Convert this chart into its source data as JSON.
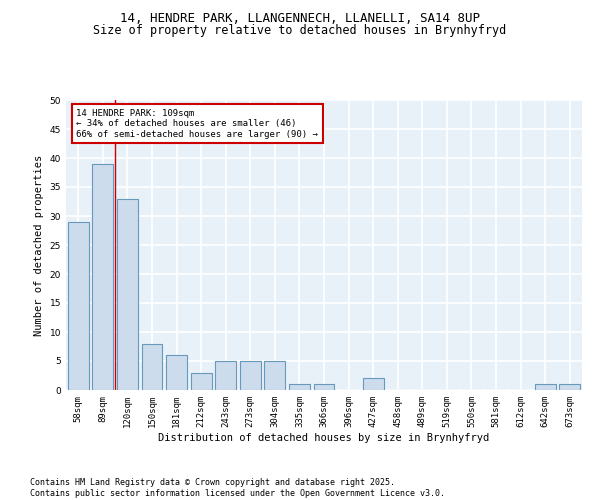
{
  "title_line1": "14, HENDRE PARK, LLANGENNECH, LLANELLI, SA14 8UP",
  "title_line2": "Size of property relative to detached houses in Brynhyfryd",
  "xlabel": "Distribution of detached houses by size in Brynhyfryd",
  "ylabel": "Number of detached properties",
  "categories": [
    "58sqm",
    "89sqm",
    "120sqm",
    "150sqm",
    "181sqm",
    "212sqm",
    "243sqm",
    "273sqm",
    "304sqm",
    "335sqm",
    "366sqm",
    "396sqm",
    "427sqm",
    "458sqm",
    "489sqm",
    "519sqm",
    "550sqm",
    "581sqm",
    "612sqm",
    "642sqm",
    "673sqm"
  ],
  "values": [
    29,
    39,
    33,
    8,
    6,
    3,
    5,
    5,
    5,
    1,
    1,
    0,
    2,
    0,
    0,
    0,
    0,
    0,
    0,
    1,
    1
  ],
  "bar_color": "#ccdcec",
  "bar_edge_color": "#6699bb",
  "red_line_x": 1.5,
  "annotation_text": "14 HENDRE PARK: 109sqm\n← 34% of detached houses are smaller (46)\n66% of semi-detached houses are larger (90) →",
  "annotation_box_color": "#ffffff",
  "annotation_box_edge": "#cc0000",
  "red_line_color": "#cc0000",
  "ylim": [
    0,
    50
  ],
  "yticks": [
    0,
    5,
    10,
    15,
    20,
    25,
    30,
    35,
    40,
    45,
    50
  ],
  "footnote": "Contains HM Land Registry data © Crown copyright and database right 2025.\nContains public sector information licensed under the Open Government Licence v3.0.",
  "background_color": "#e8f0f8",
  "grid_color": "#ffffff",
  "title_fontsize": 9,
  "subtitle_fontsize": 8.5,
  "axis_label_fontsize": 7.5,
  "tick_fontsize": 6.5,
  "annotation_fontsize": 6.5,
  "footnote_fontsize": 6
}
